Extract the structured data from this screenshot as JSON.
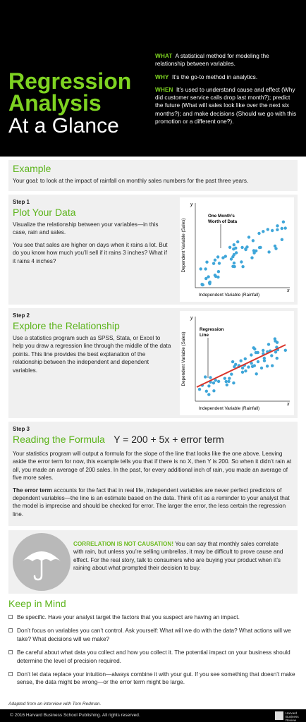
{
  "header": {
    "title_line1": "Regression",
    "title_line2": "Analysis",
    "title_line3": "At a Glance",
    "what_label": "WHAT",
    "what_text": "A statistical method for modeling the relationship between variables.",
    "why_label": "WHY",
    "why_text": "It’s the go-to method in analytics.",
    "when_label": "WHEN",
    "when_text": "It’s used to understand cause and effect (Why did customer service calls drop last month?); predict the future (What will sales look like over the next six months?); and make decisions (Should we go with this promotion or a different one?)."
  },
  "example": {
    "heading": "Example",
    "goal": "Your goal: to look at the impact of rainfall on monthly sales numbers for the past three years."
  },
  "step1": {
    "label": "Step 1",
    "title": "Plot Your Data",
    "p1": "Visualize the relationship between your variables—in this case, rain and sales.",
    "p2": "You see that sales are higher on days when it rains a lot. But do you know how much you’ll sell if it rains 3 inches? What if it rains 4 inches?",
    "chart_annotation_line1": "One Month’s",
    "chart_annotation_line2": "Worth of Data",
    "y_axis_letter": "y",
    "x_axis_letter": "x",
    "ylabel": "Dependent Variable (Sales)",
    "xlabel": "Independent Variable (Rainfall)"
  },
  "step2": {
    "label": "Step 2",
    "title": "Explore the Relationship",
    "p1": "Use a statistics program such as SPSS, Stata, or Excel to help you draw a regression line through the middle of the data points. This line provides the best explanation of the relationship between the independent and dependent variables.",
    "chart_annotation_line1": "Regression",
    "chart_annotation_line2": "Line",
    "y_axis_letter": "y",
    "x_axis_letter": "x",
    "ylabel": "Dependent Variable (Sales)",
    "xlabel": "Independent Variable (Rainfall)"
  },
  "step3": {
    "label": "Step 3",
    "title": "Reading the Formula",
    "formula": "Y = 200 + 5x + error term",
    "p1": "Your statistics program will output a formula for the slope of the line that looks like the one above. Leaving aside the error term for now, this example tells you that if there is no X, then Y is 200. So when it didn’t rain at all, you made an average of 200 sales. In the past, for every additional inch of rain, you made an average of five more sales.",
    "p2_bold": "The error term",
    "p2_rest": " accounts for the fact that in real life, independent variables are never perfect predictors of dependent variables—the line is an estimate based on the data. Think of it as a reminder to your analyst that the model is imprecise and should be checked for error. The larger the error, the less certain the regression line."
  },
  "correlation": {
    "bold": "CORRELATION IS NOT CAUSATION!",
    "text": " You can say that monthly sales correlate with rain, but unless you’re selling umbrellas, it may be difficult to prove cause and effect. For the real story, talk to consumers who are buying your product when it’s raining about what prompted their decision to buy.",
    "icon": "umbrella-icon"
  },
  "keep_in_mind": {
    "heading": "Keep in Mind",
    "items": [
      "Be specific. Have your analyst target the factors that you suspect are having an impact.",
      "Don’t focus on variables you can’t control. Ask yourself: What will we do with the data? What actions will we take? What decisions will we make?",
      "Be careful about what data you collect and how you collect it. The potential impact on your business should determine the level of precision required.",
      "Don’t let data replace your intuition—always combine it with your gut. If you see something that doesn’t make sense, the data might be wrong—or the error term might be large."
    ]
  },
  "footer": {
    "adapted": "Adapted from an interview with Tom Redman.",
    "copyright": "© 2016 Harvard Business School Publishing. All rights reserved.",
    "logo_text": "Harvard Business Review"
  },
  "colors": {
    "accent_green": "#7ed321",
    "dot_blue": "#3fa6d9",
    "regression_red": "#d9342b"
  }
}
